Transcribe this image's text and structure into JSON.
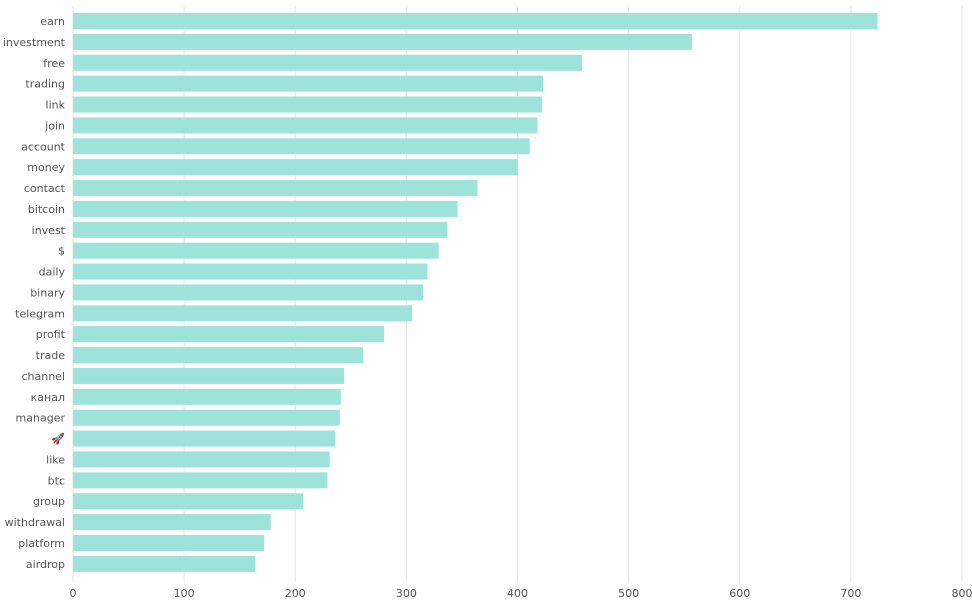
{
  "chart_data": {
    "type": "bar",
    "orientation": "horizontal",
    "categories": [
      "earn",
      "investment",
      "free",
      "trading",
      "link",
      "join",
      "account",
      "money",
      "contact",
      "bitcoin",
      "invest",
      "$",
      "daily",
      "binary",
      "telegram",
      "profit",
      "trade",
      "channel",
      "канал",
      "manager",
      "🚀",
      "like",
      "btc",
      "group",
      "withdrawal",
      "platform",
      "airdrop"
    ],
    "values": [
      724,
      557,
      458,
      423,
      422,
      418,
      411,
      400,
      364,
      346,
      337,
      329,
      319,
      315,
      305,
      280,
      261,
      244,
      241,
      240,
      236,
      231,
      229,
      207,
      178,
      172,
      164
    ],
    "xlim": [
      0,
      800
    ],
    "xticks": [
      0,
      100,
      200,
      300,
      400,
      500,
      600,
      700,
      800
    ],
    "grid": true,
    "colors": {
      "bar": "#9de3da",
      "grid": "#e6e6e6",
      "text": "#555555"
    }
  }
}
